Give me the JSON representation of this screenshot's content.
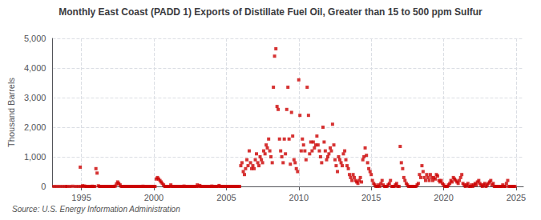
{
  "chart_data": {
    "type": "scatter",
    "title": "Monthly East Coast (PADD 1) Exports of Distillate Fuel Oil, Greater than 15 to 500 ppm Sulfur",
    "ylabel": "Thousand Barrels",
    "annotations": [
      "Source: U.S. Energy Information Administration"
    ],
    "color": "#cc0000",
    "marker": "square",
    "grid": true,
    "xlim": [
      1993.0,
      2025.5
    ],
    "xticks": [
      1995,
      2000,
      2005,
      2010,
      2015,
      2020,
      2025
    ],
    "ylim": [
      0,
      5000
    ],
    "yticks": [
      0,
      {
        "value": 1000,
        "label": "1,000"
      },
      {
        "value": 2000,
        "label": "2,000"
      },
      {
        "value": 3000,
        "label": "3,000"
      },
      {
        "value": 4000,
        "label": "4,000"
      },
      {
        "value": 5000,
        "label": "5,000"
      }
    ],
    "x": [
      1993.1,
      1993.3,
      1993.5,
      1993.7,
      1993.9,
      1994.0,
      1994.2,
      1994.4,
      1994.6,
      1994.8,
      1994.92,
      1995.0,
      1995.08,
      1995.17,
      1995.25,
      1995.33,
      1995.42,
      1995.5,
      1995.58,
      1995.67,
      1995.75,
      1995.83,
      1995.92,
      1996.0,
      1996.08,
      1996.17,
      1996.25,
      1996.33,
      1996.42,
      1996.5,
      1996.58,
      1996.67,
      1996.75,
      1996.83,
      1996.92,
      1997.0,
      1997.08,
      1997.17,
      1997.25,
      1997.33,
      1997.42,
      1997.5,
      1997.58,
      1997.67,
      1997.75,
      1997.83,
      1997.92,
      1998.0,
      1998.08,
      1998.17,
      1998.25,
      1998.33,
      1998.42,
      1998.5,
      1998.58,
      1998.67,
      1998.75,
      1998.83,
      1998.92,
      1999.0,
      1999.08,
      1999.17,
      1999.25,
      1999.33,
      1999.42,
      1999.5,
      1999.58,
      1999.67,
      1999.75,
      1999.83,
      1999.92,
      2000.0,
      2000.08,
      2000.17,
      2000.25,
      2000.33,
      2000.42,
      2000.5,
      2000.58,
      2000.67,
      2000.75,
      2000.83,
      2000.92,
      2001.0,
      2001.08,
      2001.17,
      2001.25,
      2001.33,
      2001.42,
      2001.5,
      2001.58,
      2001.67,
      2001.75,
      2001.83,
      2001.92,
      2002.0,
      2002.08,
      2002.17,
      2002.25,
      2002.33,
      2002.42,
      2002.5,
      2002.58,
      2002.67,
      2002.75,
      2002.83,
      2002.92,
      2003.0,
      2003.08,
      2003.17,
      2003.25,
      2003.33,
      2003.42,
      2003.5,
      2003.58,
      2003.67,
      2003.75,
      2003.83,
      2003.92,
      2004.0,
      2004.08,
      2004.17,
      2004.25,
      2004.33,
      2004.42,
      2004.5,
      2004.58,
      2004.67,
      2004.75,
      2004.83,
      2004.92,
      2005.0,
      2005.08,
      2005.17,
      2005.25,
      2005.33,
      2005.42,
      2005.5,
      2005.58,
      2005.67,
      2005.75,
      2005.83,
      2005.92,
      2006.0,
      2006.08,
      2006.17,
      2006.25,
      2006.33,
      2006.42,
      2006.5,
      2006.58,
      2006.67,
      2006.75,
      2006.83,
      2006.92,
      2007.0,
      2007.08,
      2007.17,
      2007.25,
      2007.33,
      2007.42,
      2007.5,
      2007.58,
      2007.67,
      2007.75,
      2007.83,
      2007.92,
      2008.0,
      2008.08,
      2008.17,
      2008.25,
      2008.33,
      2008.42,
      2008.5,
      2008.58,
      2008.67,
      2008.75,
      2008.83,
      2008.92,
      2009.0,
      2009.08,
      2009.17,
      2009.25,
      2009.33,
      2009.42,
      2009.5,
      2009.58,
      2009.67,
      2009.75,
      2009.83,
      2009.92,
      2010.0,
      2010.08,
      2010.17,
      2010.25,
      2010.33,
      2010.42,
      2010.5,
      2010.58,
      2010.67,
      2010.75,
      2010.83,
      2010.92,
      2011.0,
      2011.08,
      2011.17,
      2011.25,
      2011.33,
      2011.42,
      2011.5,
      2011.58,
      2011.67,
      2011.75,
      2011.83,
      2011.92,
      2012.0,
      2012.08,
      2012.17,
      2012.25,
      2012.33,
      2012.42,
      2012.5,
      2012.58,
      2012.67,
      2012.75,
      2012.83,
      2012.92,
      2013.0,
      2013.08,
      2013.17,
      2013.25,
      2013.33,
      2013.42,
      2013.5,
      2013.58,
      2013.67,
      2013.75,
      2013.83,
      2013.92,
      2014.0,
      2014.08,
      2014.17,
      2014.25,
      2014.33,
      2014.42,
      2014.5,
      2014.58,
      2014.67,
      2014.75,
      2014.83,
      2014.92,
      2015.0,
      2015.08,
      2015.17,
      2015.25,
      2015.33,
      2015.42,
      2015.5,
      2015.58,
      2015.67,
      2015.75,
      2015.83,
      2015.92,
      2016.0,
      2016.08,
      2016.17,
      2016.25,
      2016.33,
      2016.42,
      2016.5,
      2016.58,
      2016.67,
      2016.75,
      2016.83,
      2016.92,
      2017.0,
      2017.08,
      2017.17,
      2017.25,
      2017.33,
      2017.42,
      2017.5,
      2017.58,
      2017.67,
      2017.75,
      2017.83,
      2017.92,
      2018.0,
      2018.08,
      2018.17,
      2018.25,
      2018.33,
      2018.42,
      2018.5,
      2018.58,
      2018.67,
      2018.75,
      2018.83,
      2018.92,
      2019.0,
      2019.08,
      2019.17,
      2019.25,
      2019.33,
      2019.42,
      2019.5,
      2019.58,
      2019.67,
      2019.75,
      2019.83,
      2019.92,
      2020.0,
      2020.08,
      2020.17,
      2020.25,
      2020.33,
      2020.42,
      2020.5,
      2020.58,
      2020.67,
      2020.75,
      2020.83,
      2020.92,
      2021.0,
      2021.08,
      2021.17,
      2021.25,
      2021.33,
      2021.42,
      2021.5,
      2021.58,
      2021.67,
      2021.75,
      2021.83,
      2021.92,
      2022.0,
      2022.08,
      2022.17,
      2022.25,
      2022.33,
      2022.42,
      2022.5,
      2022.58,
      2022.67,
      2022.75,
      2022.83,
      2022.92,
      2023.0,
      2023.08,
      2023.17,
      2023.25,
      2023.33,
      2023.42,
      2023.5,
      2023.58,
      2023.67,
      2023.75,
      2023.83,
      2023.92,
      2024.0,
      2024.08,
      2024.17,
      2024.25,
      2024.33,
      2024.42,
      2024.5,
      2024.58,
      2024.67,
      2024.75,
      2024.83,
      2024.92
    ],
    "values": [
      0,
      0,
      0,
      0,
      0,
      0,
      0,
      5,
      0,
      0,
      650,
      0,
      20,
      10,
      5,
      0,
      0,
      0,
      0,
      0,
      5,
      0,
      0,
      600,
      450,
      20,
      0,
      0,
      0,
      0,
      0,
      0,
      0,
      0,
      0,
      0,
      0,
      0,
      0,
      10,
      80,
      150,
      100,
      50,
      0,
      0,
      0,
      0,
      0,
      0,
      0,
      0,
      0,
      0,
      0,
      0,
      0,
      0,
      0,
      0,
      0,
      0,
      5,
      0,
      0,
      0,
      0,
      0,
      0,
      0,
      0,
      0,
      0,
      250,
      300,
      250,
      200,
      150,
      100,
      50,
      0,
      0,
      0,
      0,
      0,
      50,
      0,
      0,
      0,
      0,
      0,
      0,
      0,
      0,
      0,
      0,
      10,
      0,
      0,
      0,
      0,
      0,
      0,
      0,
      0,
      0,
      0,
      50,
      0,
      30,
      0,
      0,
      0,
      0,
      0,
      0,
      0,
      0,
      0,
      10,
      0,
      0,
      0,
      0,
      0,
      30,
      0,
      0,
      0,
      0,
      0,
      0,
      0,
      0,
      0,
      0,
      0,
      0,
      0,
      0,
      0,
      0,
      0,
      700,
      800,
      500,
      400,
      600,
      900,
      700,
      1200,
      800,
      600,
      700,
      600,
      900,
      1100,
      800,
      700,
      1000,
      900,
      800,
      1200,
      1100,
      1400,
      1300,
      1600,
      1200,
      1000,
      800,
      3350,
      4400,
      4650,
      2700,
      2600,
      1600,
      1200,
      1000,
      800,
      1600,
      1100,
      2600,
      3350,
      1600,
      750,
      2500,
      1700,
      900,
      800,
      600,
      500,
      3600,
      2400,
      1200,
      1600,
      1400,
      1200,
      900,
      3350,
      2400,
      1100,
      1500,
      1200,
      1500,
      1300,
      1400,
      1700,
      1400,
      1200,
      1000,
      800,
      2000,
      1500,
      1200,
      900,
      1000,
      1100,
      1300,
      1200,
      2100,
      1400,
      900,
      700,
      500,
      1000,
      900,
      800,
      700,
      1100,
      1200,
      900,
      700,
      600,
      400,
      300,
      200,
      400,
      300,
      200,
      150,
      100,
      200,
      300,
      150,
      900,
      1000,
      1300,
      1050,
      800,
      600,
      500,
      400,
      200,
      100,
      50,
      0,
      0,
      50,
      0,
      100,
      200,
      50,
      0,
      0,
      0,
      50,
      100,
      200,
      0,
      0,
      0,
      50,
      100,
      0,
      0,
      1350,
      800,
      600,
      300,
      200,
      100,
      50,
      0,
      0,
      0,
      0,
      0,
      0,
      0,
      50,
      100,
      400,
      300,
      700,
      500,
      300,
      200,
      400,
      300,
      200,
      400,
      300,
      200,
      300,
      250,
      400,
      350,
      200,
      150,
      200,
      100,
      50,
      0,
      0,
      0,
      50,
      100,
      200,
      150,
      300,
      250,
      200,
      150,
      100,
      200,
      300,
      400,
      100,
      50,
      0,
      50,
      100,
      0,
      0,
      50,
      0,
      50,
      100,
      50,
      150,
      200,
      100,
      50,
      0,
      50,
      100,
      0,
      50,
      100,
      150,
      200,
      50,
      100,
      0,
      0,
      0,
      0,
      0,
      0,
      0,
      50,
      0,
      0,
      100,
      200,
      0,
      0,
      0,
      0,
      0,
      0
    ]
  }
}
